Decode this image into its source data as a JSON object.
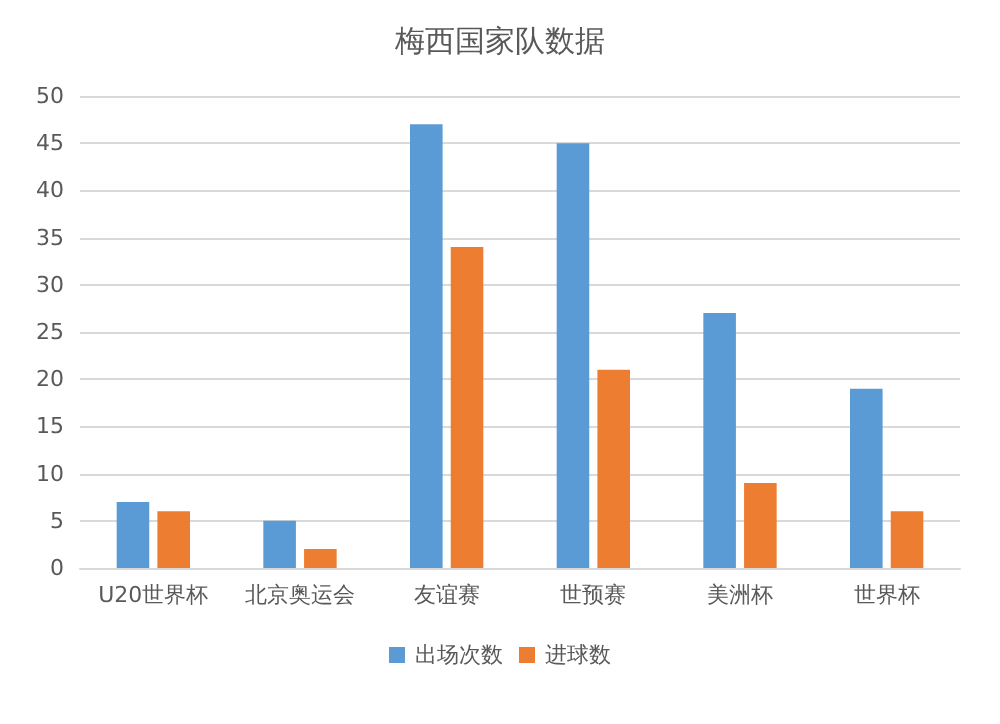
{
  "chart_data": {
    "type": "bar",
    "title": "梅西国家队数据",
    "categories": [
      "U20世界杯",
      "北京奥运会",
      "友谊赛",
      "世预赛",
      "美洲杯",
      "世界杯"
    ],
    "series": [
      {
        "name": "出场次数",
        "color": "#5b9bd5",
        "values": [
          7,
          5,
          47,
          45,
          27,
          19
        ]
      },
      {
        "name": "进球数",
        "color": "#ed7d31",
        "values": [
          6,
          2,
          34,
          21,
          9,
          6
        ]
      }
    ],
    "ylim": [
      0,
      50
    ],
    "yticks": [
      0,
      5,
      10,
      15,
      20,
      25,
      30,
      35,
      40,
      45,
      50
    ],
    "grid": "y",
    "legend": "bottom"
  }
}
